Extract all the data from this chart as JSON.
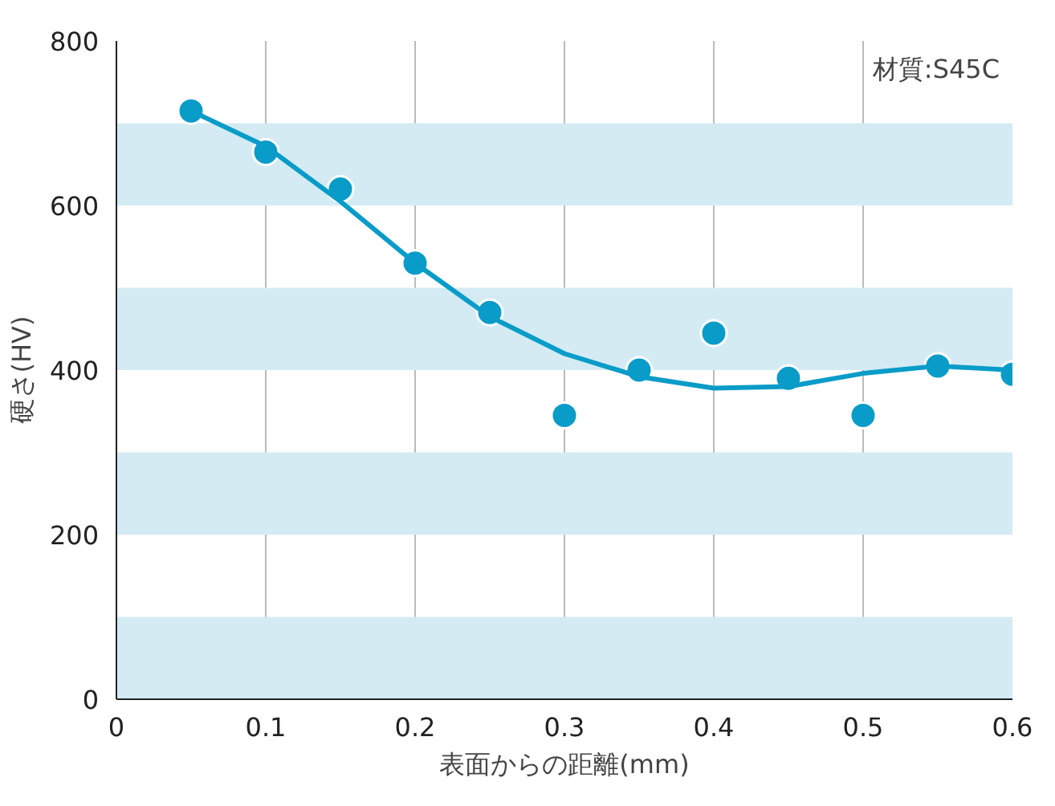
{
  "chart_data": {
    "type": "scatter",
    "xlabel": "表面からの距離(mm)",
    "ylabel": "硬さ(HV)",
    "x": [
      0.05,
      0.1,
      0.15,
      0.2,
      0.25,
      0.3,
      0.35,
      0.4,
      0.45,
      0.5,
      0.55,
      0.6
    ],
    "series": [
      {
        "marker": "circle",
        "color": "#0a9cc8",
        "values": [
          715,
          665,
          620,
          530,
          470,
          345,
          400,
          445,
          390,
          345,
          405,
          395
        ]
      },
      {
        "type": "line",
        "color": "#0a9cc8",
        "x": [
          0.05,
          0.1,
          0.15,
          0.2,
          0.25,
          0.3,
          0.35,
          0.4,
          0.45,
          0.5,
          0.55,
          0.6
        ],
        "values": [
          715,
          672,
          605,
          530,
          465,
          420,
          392,
          378,
          380,
          396,
          405,
          400
        ]
      }
    ],
    "xlim": [
      0,
      0.6
    ],
    "ylim": [
      0,
      800
    ],
    "xticks": [
      0,
      0.1,
      0.2,
      0.3,
      0.4,
      0.5,
      0.6
    ],
    "yticks": [
      0,
      200,
      400,
      600,
      800
    ],
    "bands": [
      {
        "axis": "y",
        "from": 600,
        "to": 700,
        "color": "#d4ebf4"
      },
      {
        "axis": "y",
        "from": 400,
        "to": 500,
        "color": "#d4ebf4"
      },
      {
        "axis": "y",
        "from": 200,
        "to": 300,
        "color": "#d4ebf4"
      },
      {
        "axis": "y",
        "from": 0,
        "to": 100,
        "color": "#d4ebf4"
      }
    ],
    "annotations": [
      "材質:S45C"
    ],
    "grid": "x",
    "line_style": "solid"
  }
}
